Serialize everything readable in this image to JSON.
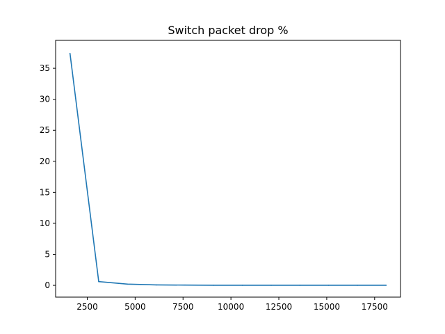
{
  "chart_data": {
    "type": "line",
    "title": "Switch packet drop %",
    "xlabel": "",
    "ylabel": "",
    "xlim": [
      850,
      18850
    ],
    "ylim": [
      -1.9,
      39.5
    ],
    "xticks": [
      2500,
      5000,
      7500,
      10000,
      12500,
      15000,
      17500
    ],
    "yticks": [
      0,
      5,
      10,
      15,
      20,
      25,
      30,
      35
    ],
    "grid": false,
    "series": [
      {
        "color": "#1f77b4",
        "x": [
          1600,
          3100,
          4600,
          6100,
          7600,
          9100,
          10600,
          12100,
          13600,
          15100,
          16600,
          18100
        ],
        "y": [
          37.4,
          0.6,
          0.2,
          0.07,
          0.04,
          0.02,
          0.01,
          0.01,
          0.01,
          0.01,
          0.01,
          0.01
        ]
      }
    ]
  }
}
